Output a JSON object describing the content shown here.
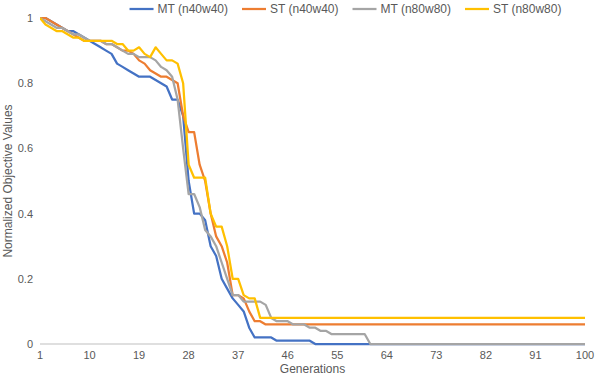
{
  "chart_data": {
    "type": "line",
    "x_label": "Generations",
    "y_label": "Normalized Objective Values",
    "x": [
      1,
      2,
      3,
      4,
      5,
      6,
      7,
      8,
      9,
      10,
      11,
      12,
      13,
      14,
      15,
      16,
      17,
      18,
      19,
      20,
      21,
      22,
      23,
      24,
      25,
      26,
      27,
      28,
      29,
      30,
      31,
      32,
      33,
      34,
      35,
      36,
      37,
      38,
      39,
      40,
      41,
      42,
      43,
      44,
      45,
      46,
      47,
      48,
      49,
      50,
      51,
      52,
      53,
      54,
      55,
      56,
      57,
      58,
      59,
      60,
      61,
      62,
      63,
      64,
      65,
      66,
      67,
      68,
      69,
      70,
      71,
      72,
      73,
      74,
      75,
      76,
      77,
      78,
      79,
      80,
      81,
      82,
      83,
      84,
      85,
      86,
      87,
      88,
      89,
      90,
      91,
      92,
      93,
      94,
      95,
      96,
      97,
      98,
      99,
      100
    ],
    "xlim": [
      1,
      100
    ],
    "xticks": [
      1,
      10,
      19,
      28,
      37,
      46,
      55,
      64,
      73,
      82,
      91,
      100
    ],
    "ylim": [
      0,
      1
    ],
    "yticks": [
      0,
      0.2,
      0.4,
      0.6,
      0.8,
      1
    ],
    "grid": false,
    "legend": "top",
    "series": [
      {
        "name": "MT (n40w40)",
        "color": "#4472c4",
        "values": [
          1,
          1,
          0.99,
          0.98,
          0.97,
          0.96,
          0.96,
          0.95,
          0.94,
          0.93,
          0.92,
          0.91,
          0.9,
          0.89,
          0.86,
          0.85,
          0.84,
          0.83,
          0.82,
          0.82,
          0.82,
          0.81,
          0.8,
          0.79,
          0.75,
          0.75,
          0.7,
          0.5,
          0.4,
          0.4,
          0.38,
          0.3,
          0.27,
          0.2,
          0.17,
          0.14,
          0.12,
          0.1,
          0.05,
          0.02,
          0.02,
          0.02,
          0.02,
          0.01,
          0.01,
          0.01,
          0.01,
          0.01,
          0.01,
          0.01,
          0,
          0,
          0,
          0,
          0,
          0,
          0,
          0,
          0,
          0,
          0,
          0,
          0,
          0,
          0,
          0,
          0,
          0,
          0,
          0,
          0,
          0,
          0,
          0,
          0,
          0,
          0,
          0,
          0,
          0,
          0,
          0,
          0,
          0,
          0,
          0,
          0,
          0,
          0,
          0,
          0,
          0,
          0,
          0,
          0,
          0,
          0,
          0,
          0,
          0
        ]
      },
      {
        "name": "ST (n40w40)",
        "color": "#ed7d31",
        "values": [
          1,
          1,
          0.99,
          0.98,
          0.97,
          0.96,
          0.95,
          0.94,
          0.93,
          0.93,
          0.93,
          0.93,
          0.92,
          0.92,
          0.91,
          0.9,
          0.9,
          0.89,
          0.87,
          0.86,
          0.84,
          0.83,
          0.82,
          0.82,
          0.81,
          0.8,
          0.7,
          0.65,
          0.65,
          0.55,
          0.5,
          0.4,
          0.33,
          0.3,
          0.25,
          0.15,
          0.15,
          0.14,
          0.1,
          0.07,
          0.07,
          0.06,
          0.06,
          0.06,
          0.06,
          0.06,
          0.06,
          0.06,
          0.06,
          0.06,
          0.06,
          0.06,
          0.06,
          0.06,
          0.06,
          0.06,
          0.06,
          0.06,
          0.06,
          0.06,
          0.06,
          0.06,
          0.06,
          0.06,
          0.06,
          0.06,
          0.06,
          0.06,
          0.06,
          0.06,
          0.06,
          0.06,
          0.06,
          0.06,
          0.06,
          0.06,
          0.06,
          0.06,
          0.06,
          0.06,
          0.06,
          0.06,
          0.06,
          0.06,
          0.06,
          0.06,
          0.06,
          0.06,
          0.06,
          0.06,
          0.06,
          0.06,
          0.06,
          0.06,
          0.06,
          0.06,
          0.06,
          0.06,
          0.06,
          0.06
        ]
      },
      {
        "name": "MT (n80w80)",
        "color": "#a5a5a5",
        "values": [
          1,
          0.99,
          0.98,
          0.97,
          0.97,
          0.96,
          0.95,
          0.95,
          0.94,
          0.93,
          0.93,
          0.93,
          0.92,
          0.92,
          0.91,
          0.9,
          0.89,
          0.89,
          0.88,
          0.88,
          0.88,
          0.87,
          0.85,
          0.84,
          0.82,
          0.75,
          0.6,
          0.46,
          0.46,
          0.42,
          0.35,
          0.33,
          0.3,
          0.25,
          0.2,
          0.15,
          0.15,
          0.13,
          0.13,
          0.13,
          0.13,
          0.12,
          0.08,
          0.07,
          0.07,
          0.07,
          0.06,
          0.06,
          0.06,
          0.05,
          0.05,
          0.04,
          0.04,
          0.03,
          0.03,
          0.03,
          0.03,
          0.03,
          0.03,
          0.03,
          0,
          0,
          0,
          0,
          0,
          0,
          0,
          0,
          0,
          0,
          0,
          0,
          0,
          0,
          0,
          0,
          0,
          0,
          0,
          0,
          0,
          0,
          0,
          0,
          0,
          0,
          0,
          0,
          0,
          0,
          0,
          0,
          0,
          0,
          0,
          0,
          0,
          0,
          0,
          0
        ]
      },
      {
        "name": "ST (n80w80)",
        "color": "#ffc000",
        "values": [
          1,
          0.98,
          0.97,
          0.96,
          0.96,
          0.95,
          0.94,
          0.94,
          0.93,
          0.93,
          0.93,
          0.93,
          0.93,
          0.93,
          0.92,
          0.92,
          0.9,
          0.9,
          0.91,
          0.89,
          0.88,
          0.91,
          0.89,
          0.87,
          0.87,
          0.86,
          0.8,
          0.55,
          0.51,
          0.51,
          0.51,
          0.4,
          0.36,
          0.36,
          0.3,
          0.2,
          0.2,
          0.15,
          0.14,
          0.14,
          0.08,
          0.08,
          0.08,
          0.08,
          0.08,
          0.08,
          0.08,
          0.08,
          0.08,
          0.08,
          0.08,
          0.08,
          0.08,
          0.08,
          0.08,
          0.08,
          0.08,
          0.08,
          0.08,
          0.08,
          0.08,
          0.08,
          0.08,
          0.08,
          0.08,
          0.08,
          0.08,
          0.08,
          0.08,
          0.08,
          0.08,
          0.08,
          0.08,
          0.08,
          0.08,
          0.08,
          0.08,
          0.08,
          0.08,
          0.08,
          0.08,
          0.08,
          0.08,
          0.08,
          0.08,
          0.08,
          0.08,
          0.08,
          0.08,
          0.08,
          0.08,
          0.08,
          0.08,
          0.08,
          0.08,
          0.08,
          0.08,
          0.08,
          0.08,
          0.08
        ]
      }
    ]
  }
}
